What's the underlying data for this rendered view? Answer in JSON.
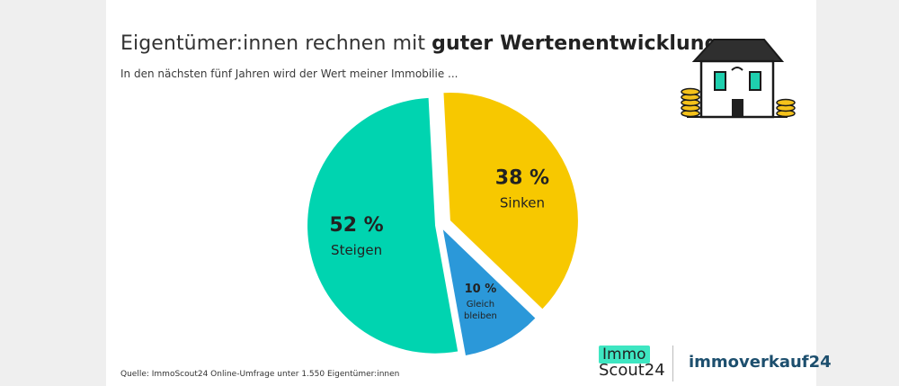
{
  "header": {
    "title_regular": "Eigentümer:innen rechnen mit",
    "title_bold": "guter Wertenentwicklung",
    "subtitle": "In den nächsten fünf Jahren wird der Wert meiner Immobilie ..."
  },
  "chart_data": {
    "type": "pie",
    "slices": [
      {
        "label_value": "38 %",
        "label_text": "Sinken",
        "value": 38,
        "color": "#f7c800"
      },
      {
        "label_value": "10 %",
        "label_text": "Gleich bleiben",
        "value": 10,
        "color": "#2b98d9"
      },
      {
        "label_value": "52 %",
        "label_text": "Steigen",
        "value": 52,
        "color": "#00d4b0"
      }
    ]
  },
  "footer": {
    "source": "Quelle: ImmoScout24 Online-Umfrage unter 1.550 Eigentümer:innen"
  },
  "logos": {
    "scout_top": "Immo",
    "scout_bottom": "Scout24",
    "immoverkauf": "immoverkauf24"
  },
  "icons": {
    "illustration": "house-with-coins-icon"
  }
}
